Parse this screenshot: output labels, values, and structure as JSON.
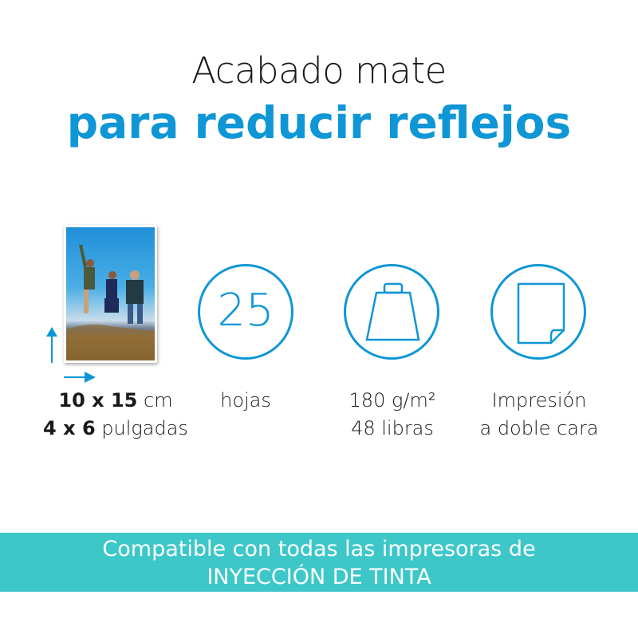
{
  "heading": {
    "line1": "Acabado mate",
    "line2": "para reducir reflejos"
  },
  "colors": {
    "accent": "#0f96d6",
    "banner": "#3dc7c9"
  },
  "features": [
    {
      "icon": "photo-size-icon",
      "value_bold_1": "10 x 15",
      "unit_1": " cm",
      "value_bold_2": "4 x 6",
      "unit_2": " pulgadas"
    },
    {
      "icon": "sheet-count-circle",
      "number": "25",
      "label": "hojas"
    },
    {
      "icon": "weight-icon",
      "line1": "180 g/m²",
      "line2": "48 libras"
    },
    {
      "icon": "double-sided-page-icon",
      "line1": "Impresión",
      "line2": "a doble cara"
    }
  ],
  "banner": {
    "line1": "Compatible con todas las impresoras de",
    "line2": "INYECCIÓN DE TINTA"
  }
}
